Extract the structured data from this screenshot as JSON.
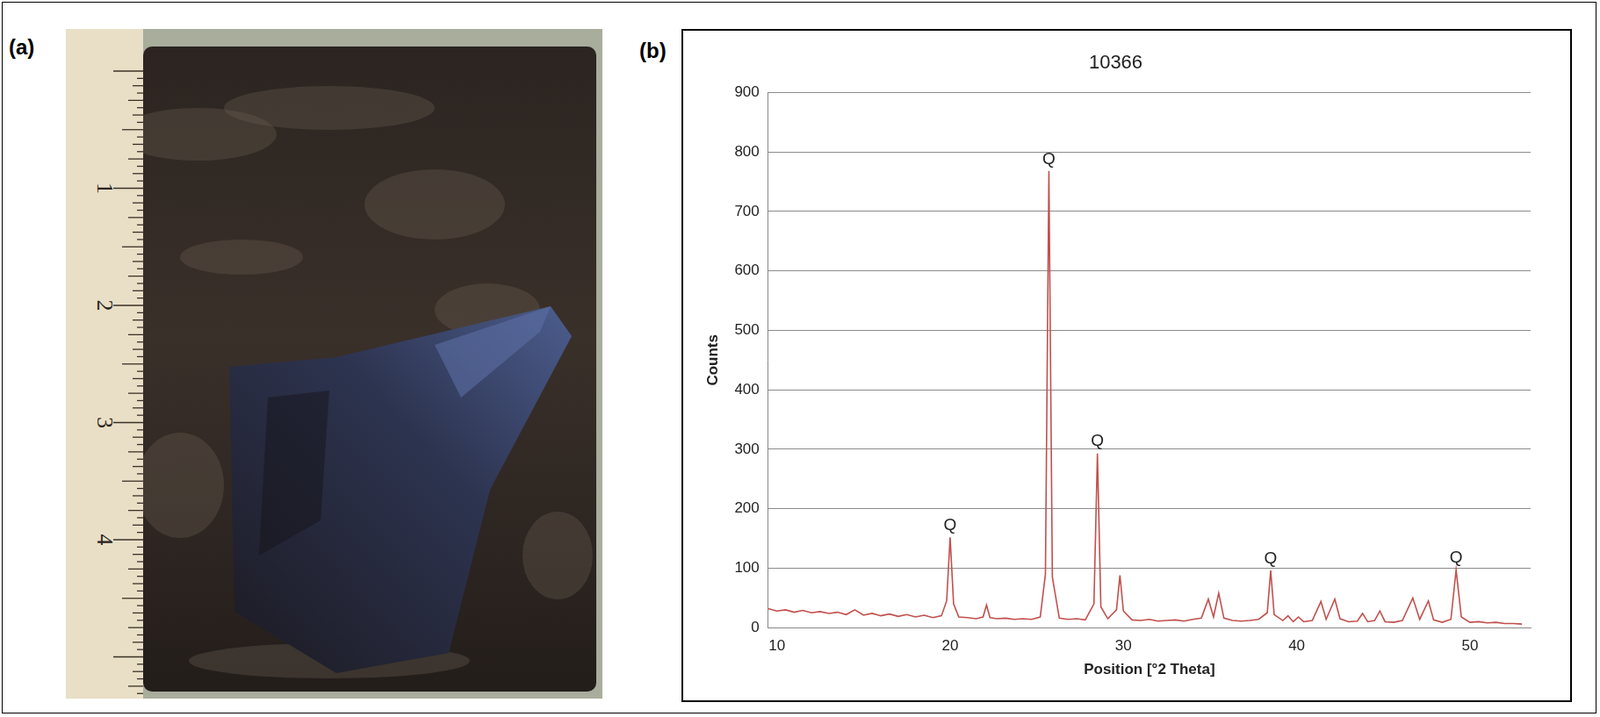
{
  "panels": [
    {
      "label": "(a)",
      "ruler_labels": [
        1,
        2,
        3,
        4
      ]
    },
    {
      "label": "(b)"
    }
  ],
  "chart_data": {
    "type": "line",
    "title": "10366",
    "x_label": "Position [°2 Theta]",
    "y_label": "Counts",
    "x": [
      9.5,
      10,
      10.5,
      11,
      11.5,
      12,
      12.5,
      13,
      13.5,
      14,
      14.5,
      15,
      15.5,
      16,
      16.5,
      17,
      17.5,
      18,
      18.5,
      19,
      19.5,
      19.8,
      20.0,
      20.2,
      20.5,
      21,
      21.5,
      21.9,
      22.1,
      22.3,
      22.7,
      23.2,
      23.7,
      24.2,
      24.7,
      25.2,
      25.5,
      25.7,
      25.9,
      26.3,
      26.8,
      27.3,
      27.8,
      28.3,
      28.5,
      28.7,
      29.1,
      29.6,
      29.8,
      30.0,
      30.5,
      31,
      31.5,
      32,
      32.5,
      33,
      33.5,
      34,
      34.5,
      34.9,
      35.2,
      35.5,
      35.8,
      36.3,
      36.8,
      37.3,
      37.8,
      38.3,
      38.5,
      38.7,
      39.2,
      39.5,
      39.8,
      40.1,
      40.4,
      40.9,
      41.4,
      41.7,
      42.2,
      42.5,
      43,
      43.5,
      43.8,
      44.1,
      44.5,
      44.8,
      45.1,
      45.6,
      46.1,
      46.7,
      47.1,
      47.6,
      47.9,
      48.4,
      48.9,
      49.2,
      49.5,
      50,
      50.5,
      51,
      51.5,
      52,
      52.5,
      53
    ],
    "values": [
      32,
      28,
      30,
      26,
      29,
      25,
      27,
      24,
      26,
      22,
      30,
      21,
      24,
      20,
      23,
      19,
      22,
      18,
      21,
      17,
      20,
      45,
      152,
      40,
      18,
      17,
      15,
      18,
      38,
      17,
      15,
      16,
      14,
      15,
      14,
      18,
      90,
      768,
      85,
      16,
      14,
      15,
      13,
      40,
      293,
      35,
      15,
      30,
      88,
      28,
      13,
      12,
      14,
      11,
      12,
      13,
      11,
      14,
      16,
      48,
      18,
      58,
      16,
      12,
      11,
      12,
      14,
      25,
      96,
      22,
      12,
      20,
      10,
      18,
      10,
      12,
      44,
      14,
      48,
      15,
      10,
      11,
      24,
      10,
      12,
      28,
      10,
      9,
      12,
      50,
      14,
      45,
      13,
      9,
      14,
      97,
      18,
      9,
      10,
      8,
      9,
      7,
      7,
      6
    ],
    "color": "#c0504d",
    "xlim": [
      9.5,
      53.5
    ],
    "xticks": [
      10,
      20,
      30,
      40,
      50
    ],
    "ylim": [
      0,
      900
    ],
    "yticks": [
      0,
      100,
      200,
      300,
      400,
      500,
      600,
      700,
      800,
      900
    ],
    "grid": true,
    "annotations": [
      {
        "x": 20.0,
        "y": 152,
        "text": "Q"
      },
      {
        "x": 25.7,
        "y": 768,
        "text": "Q"
      },
      {
        "x": 28.5,
        "y": 293,
        "text": "Q"
      },
      {
        "x": 38.5,
        "y": 96,
        "text": "Q"
      },
      {
        "x": 49.2,
        "y": 97,
        "text": "Q"
      }
    ]
  }
}
